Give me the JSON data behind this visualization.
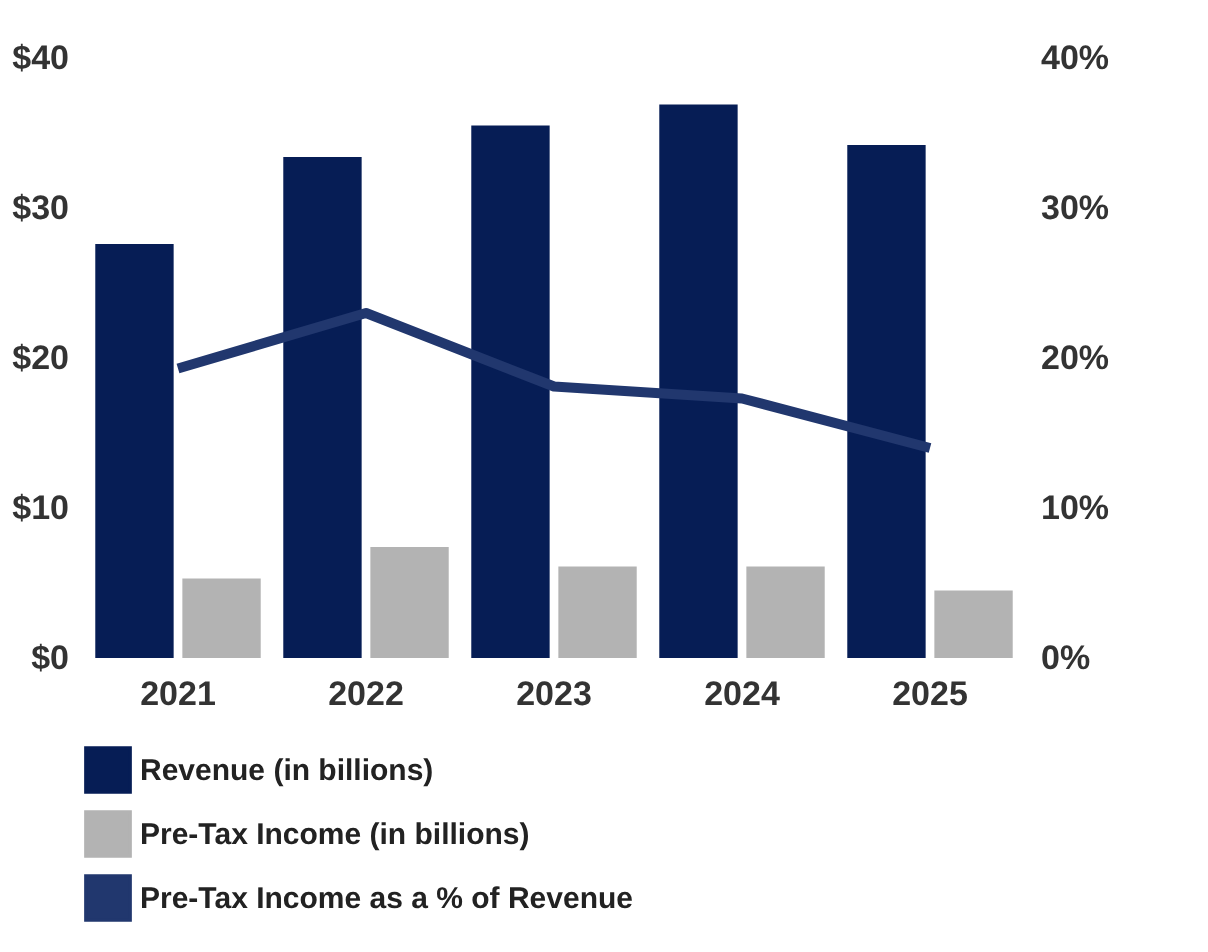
{
  "chart_data": {
    "type": "bar",
    "categories": [
      "2021",
      "2022",
      "2023",
      "2024",
      "2025"
    ],
    "series": [
      {
        "name": "Revenue (in billions)",
        "color": "#061d55",
        "values": [
          27.6,
          33.4,
          35.5,
          36.9,
          34.2
        ]
      },
      {
        "name": "Pre-Tax Income (in billions)",
        "color": "#b3b3b3",
        "values": [
          5.3,
          7.4,
          6.1,
          6.1,
          4.5
        ]
      },
      {
        "name": "Pre-Tax Income as a % of Revenue",
        "type": "line",
        "axis": "y2",
        "color": "#21376e",
        "values": [
          19.3,
          23.0,
          18.1,
          17.3,
          14.0
        ]
      }
    ],
    "ylim": [
      0,
      40
    ],
    "yticks": [
      {
        "value": 0,
        "label": "$0"
      },
      {
        "value": 10,
        "label": "$10"
      },
      {
        "value": 20,
        "label": "$20"
      },
      {
        "value": 30,
        "label": "$30"
      },
      {
        "value": 40,
        "label": "$40"
      }
    ],
    "y2lim": [
      0,
      40
    ],
    "y2ticks": [
      {
        "value": 0,
        "label": "0%"
      },
      {
        "value": 10,
        "label": "10%"
      },
      {
        "value": 20,
        "label": "20%"
      },
      {
        "value": 30,
        "label": "30%"
      },
      {
        "value": 40,
        "label": "40%"
      }
    ],
    "grid": false,
    "legend": "bottom",
    "marker": "none",
    "line_style": "solid"
  }
}
